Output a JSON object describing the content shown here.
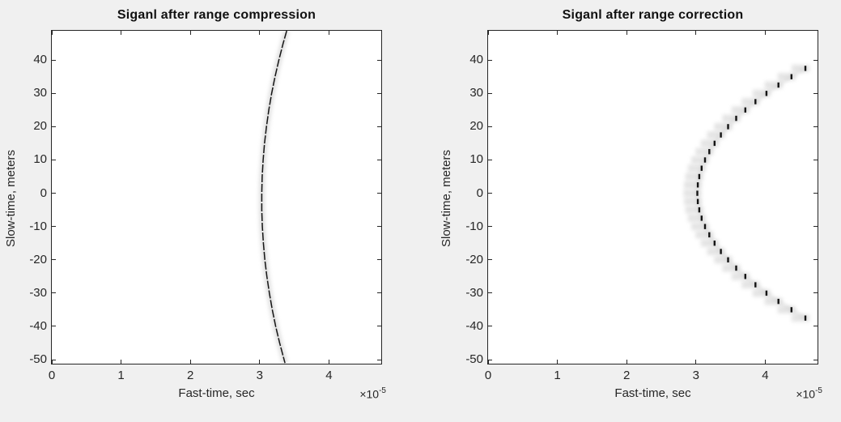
{
  "figure": {
    "background": "#f0f0f0",
    "plot_background": "#ffffff",
    "axis_color": "#262626",
    "text_color": "#262626",
    "title_color": "#111111",
    "signal_color": "#141414",
    "halo_color": "#9e9e9e"
  },
  "chart_data": [
    {
      "type": "heatmap",
      "render": "continuous-curve",
      "title": "Siganl after range compression",
      "xlabel": "Fast-time, sec",
      "ylabel": "Slow-time, meters",
      "x_scale_prefix": "×10",
      "x_scale_exponent": "-5",
      "xlim_1e5": [
        0,
        4.755
      ],
      "ylim": [
        -51.2,
        48.8
      ],
      "xticks": [
        0,
        1,
        2,
        3,
        4
      ],
      "yticks": [
        40,
        30,
        20,
        10,
        0,
        -10,
        -20,
        -30,
        -40,
        -50
      ],
      "grid": false,
      "legend": null,
      "curve_y": [
        48.8,
        45,
        40,
        35,
        30,
        25,
        20,
        15,
        10,
        5,
        0,
        -5,
        -10,
        -15,
        -20,
        -25,
        -30,
        -35,
        -40,
        -45,
        -51
      ],
      "curve_x_1e5": [
        3.391,
        3.339,
        3.277,
        3.222,
        3.173,
        3.132,
        3.098,
        3.07,
        3.05,
        3.037,
        3.031,
        3.031,
        3.039,
        3.054,
        3.075,
        3.104,
        3.14,
        3.182,
        3.232,
        3.289,
        3.366
      ]
    },
    {
      "type": "heatmap",
      "render": "dashed-marks",
      "title": "Siganl after range correction",
      "xlabel": "Fast-time, sec",
      "ylabel": "Slow-time, meters",
      "x_scale_prefix": "×10",
      "x_scale_exponent": "-5",
      "xlim_1e5": [
        0,
        4.755
      ],
      "ylim": [
        -51.2,
        48.8
      ],
      "xticks": [
        0,
        1,
        2,
        3,
        4
      ],
      "yticks": [
        40,
        30,
        20,
        10,
        0,
        -10,
        -20,
        -30,
        -40,
        -50
      ],
      "grid": false,
      "legend": null,
      "marks_y": [
        -37.5,
        -35,
        -32.5,
        -30,
        -27.5,
        -25,
        -22.5,
        -20,
        -17.5,
        -15,
        -12.5,
        -10,
        -7.5,
        -5,
        -2.5,
        0,
        2.5,
        5,
        7.5,
        10,
        12.5,
        15,
        17.5,
        20,
        22.5,
        25,
        27.5,
        30,
        32.5,
        35,
        37.5
      ],
      "marks_x_1e5": [
        4.58,
        4.379,
        4.191,
        4.018,
        3.859,
        3.713,
        3.581,
        3.464,
        3.36,
        3.269,
        3.193,
        3.131,
        3.082,
        3.048,
        3.027,
        3.02,
        3.027,
        3.048,
        3.082,
        3.131,
        3.193,
        3.269,
        3.36,
        3.464,
        3.581,
        3.713,
        3.859,
        4.018,
        4.191,
        4.379,
        4.58
      ]
    }
  ]
}
